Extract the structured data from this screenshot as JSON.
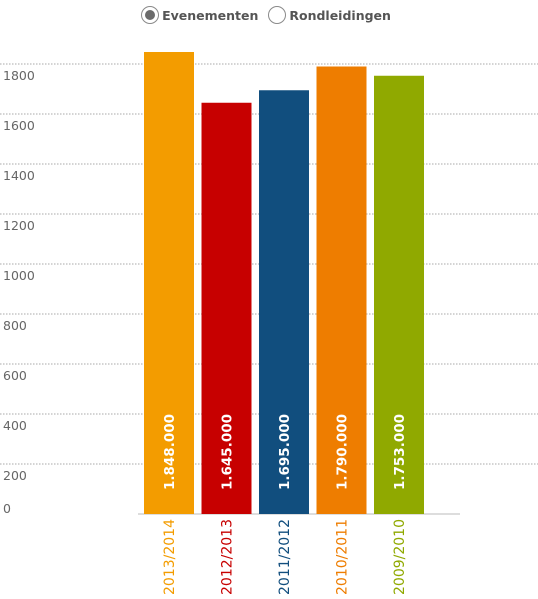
{
  "toggle": {
    "options": [
      {
        "label": "Evenementen",
        "selected": true
      },
      {
        "label": "Rondleidingen",
        "selected": false
      }
    ]
  },
  "chart_data": {
    "type": "bar",
    "categories": [
      "2013/2014",
      "2012/2013",
      "2011/2012",
      "2010/2011",
      "2009/2010"
    ],
    "values": [
      1848,
      1645,
      1695,
      1790,
      1753
    ],
    "data_labels": [
      "1.848.000",
      "1.645.000",
      "1.695.000",
      "1.790.000",
      "1.753.000"
    ],
    "colors": [
      "#F39C00",
      "#C70000",
      "#114E7E",
      "#EE7D00",
      "#90A900"
    ],
    "yticks": [
      0,
      200,
      400,
      600,
      800,
      1000,
      1200,
      1400,
      1600,
      1800
    ],
    "ylim": [
      0,
      1900
    ],
    "grid": true,
    "title": "",
    "xlabel": "",
    "ylabel": ""
  }
}
